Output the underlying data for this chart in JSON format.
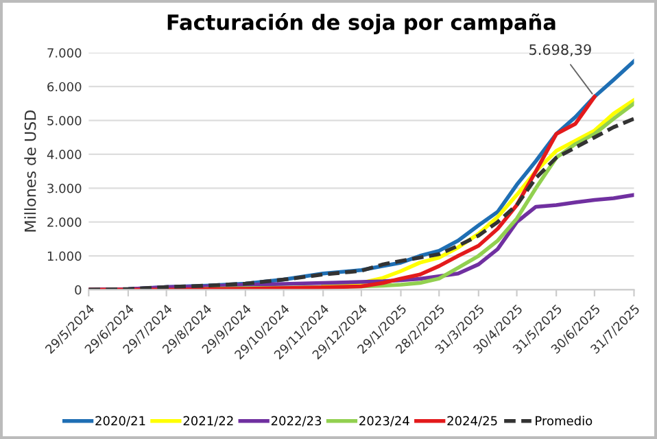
{
  "chart_data": {
    "type": "line",
    "title": "Facturación de soja por campaña",
    "ylabel": "Millones de USD",
    "x": [
      "2024-05-29",
      "2024-06-29",
      "2024-07-29",
      "2024-08-29",
      "2024-09-29",
      "2024-10-29",
      "2024-11-29",
      "2024-12-29",
      "2025-01-15",
      "2025-01-29",
      "2025-02-13",
      "2025-02-28",
      "2025-03-15",
      "2025-03-31",
      "2025-04-15",
      "2025-04-30",
      "2025-05-15",
      "2025-05-31",
      "2025-06-15",
      "2025-06-30",
      "2025-07-15",
      "2025-07-31"
    ],
    "series": [
      {
        "name": "2020/21",
        "color": "#1f6fb4",
        "values": [
          0,
          20,
          80,
          120,
          180,
          300,
          480,
          580,
          700,
          800,
          1000,
          1150,
          1450,
          1900,
          2300,
          3100,
          3800,
          4600,
          5100,
          5700,
          6200,
          6750
        ]
      },
      {
        "name": "2021/22",
        "color": "#ffff00",
        "values": [
          null,
          null,
          null,
          null,
          null,
          null,
          120,
          200,
          350,
          550,
          800,
          950,
          1250,
          1650,
          2150,
          2800,
          3500,
          4100,
          4400,
          4700,
          5200,
          5600
        ]
      },
      {
        "name": "2022/23",
        "color": "#7030a0",
        "values": [
          0,
          20,
          80,
          100,
          150,
          170,
          200,
          230,
          250,
          280,
          320,
          400,
          480,
          750,
          1200,
          2000,
          2450,
          2500,
          2580,
          2650,
          2700,
          2800
        ]
      },
      {
        "name": "2023/24",
        "color": "#92d050",
        "values": [
          null,
          null,
          null,
          30,
          50,
          60,
          80,
          100,
          120,
          150,
          200,
          330,
          650,
          1000,
          1450,
          2100,
          3000,
          3900,
          4300,
          4600,
          5050,
          5500
        ]
      },
      {
        "name": "2024/25",
        "color": "#e31a1c",
        "values": [
          0,
          0,
          0,
          20,
          30,
          50,
          70,
          100,
          200,
          330,
          450,
          700,
          1000,
          1300,
          1800,
          2500,
          3500,
          4600,
          4900,
          5698.39,
          null,
          null
        ]
      },
      {
        "name": "Promedio",
        "color": "#333333",
        "line_style": "dashed",
        "values": [
          0,
          20,
          80,
          120,
          180,
          300,
          450,
          560,
          750,
          850,
          950,
          1050,
          1300,
          1600,
          2000,
          2500,
          3300,
          3900,
          4200,
          4500,
          4800,
          5050
        ]
      }
    ],
    "xlim": [
      "2024-05-29",
      "2025-07-31"
    ],
    "xticks": [
      {
        "value": "2024-05-29",
        "label": "29/5/2024"
      },
      {
        "value": "2024-06-29",
        "label": "29/6/2024"
      },
      {
        "value": "2024-07-29",
        "label": "29/7/2024"
      },
      {
        "value": "2024-08-29",
        "label": "29/8/2024"
      },
      {
        "value": "2024-09-29",
        "label": "29/9/2024"
      },
      {
        "value": "2024-10-29",
        "label": "29/10/2024"
      },
      {
        "value": "2024-11-29",
        "label": "29/11/2024"
      },
      {
        "value": "2024-12-29",
        "label": "29/12/2024"
      },
      {
        "value": "2025-01-29",
        "label": "29/1/2025"
      },
      {
        "value": "2025-02-28",
        "label": "28/2/2025"
      },
      {
        "value": "2025-03-31",
        "label": "31/3/2025"
      },
      {
        "value": "2025-04-30",
        "label": "30/4/2025"
      },
      {
        "value": "2025-05-31",
        "label": "31/5/2025"
      },
      {
        "value": "2025-06-30",
        "label": "30/6/2025"
      },
      {
        "value": "2025-07-31",
        "label": "31/7/2025"
      }
    ],
    "ylim": [
      0,
      7000
    ],
    "yticks": [
      0,
      {
        "value": 1000,
        "label": "1.000"
      },
      {
        "value": 2000,
        "label": "2.000"
      },
      {
        "value": 3000,
        "label": "3.000"
      },
      {
        "value": 4000,
        "label": "4.000"
      },
      {
        "value": 5000,
        "label": "5.000"
      },
      {
        "value": 6000,
        "label": "6.000"
      },
      {
        "value": 7000,
        "label": "7.000"
      }
    ],
    "annotations": [
      {
        "text": "5.698,39",
        "x": "2025-06-30",
        "y": 5698.39
      }
    ],
    "grid": "y",
    "legend": "bottom",
    "marker": "none"
  }
}
